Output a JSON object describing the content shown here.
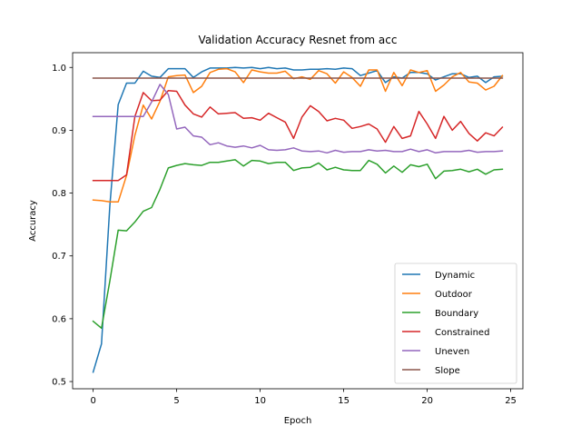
{
  "chart_data": {
    "type": "line",
    "title": "Validation Accuracy Resnet from acc",
    "xlabel": "Epoch",
    "ylabel": "Accuracy",
    "xlim": [
      -1.23,
      25.73
    ],
    "ylim": [
      0.4885,
      1.0235
    ],
    "x_ticks": [
      0,
      5,
      10,
      15,
      20,
      25
    ],
    "y_ticks": [
      0.5,
      0.6,
      0.7,
      0.8,
      0.9,
      1.0
    ],
    "x_tick_labels": [
      "0",
      "5",
      "10",
      "15",
      "20",
      "25"
    ],
    "y_tick_labels": [
      "0.5",
      "0.6",
      "0.7",
      "0.8",
      "0.9",
      "1.0"
    ],
    "grid": false,
    "legend_position": "bottom-right",
    "x": [
      0,
      0.5,
      1,
      1.5,
      2,
      2.5,
      3,
      3.5,
      4,
      4.5,
      5,
      5.5,
      6,
      6.5,
      7,
      7.5,
      8,
      8.5,
      9,
      9.5,
      10,
      10.5,
      11,
      11.5,
      12,
      12.5,
      13,
      13.5,
      14,
      14.5,
      15,
      15.5,
      16,
      16.5,
      17,
      17.5,
      18,
      18.5,
      19,
      19.5,
      20,
      20.5,
      21,
      21.5,
      22,
      22.5,
      23,
      23.5,
      24,
      24.5
    ],
    "series": [
      {
        "name": "Dynamic",
        "color": "#1f77b4",
        "values": [
          0.515,
          0.56,
          0.78,
          0.941,
          0.975,
          0.975,
          0.994,
          0.986,
          0.984,
          0.998,
          0.998,
          0.998,
          0.984,
          0.993,
          0.999,
          0.999,
          0.999,
          1.0,
          0.999,
          1.0,
          0.998,
          1.0,
          0.998,
          0.999,
          0.996,
          0.996,
          0.997,
          0.997,
          0.998,
          0.997,
          0.999,
          0.998,
          0.987,
          0.991,
          0.995,
          0.976,
          0.985,
          0.983,
          0.992,
          0.992,
          0.99,
          0.98,
          0.985,
          0.99,
          0.99,
          0.984,
          0.986,
          0.976,
          0.985,
          0.986
        ]
      },
      {
        "name": "Outdoor",
        "color": "#ff7f0e",
        "values": [
          0.789,
          0.788,
          0.786,
          0.786,
          0.828,
          0.892,
          0.94,
          0.918,
          0.946,
          0.985,
          0.987,
          0.988,
          0.96,
          0.97,
          0.992,
          0.997,
          0.998,
          0.993,
          0.976,
          0.996,
          0.993,
          0.991,
          0.991,
          0.994,
          0.982,
          0.985,
          0.981,
          0.995,
          0.99,
          0.975,
          0.993,
          0.984,
          0.97,
          0.996,
          0.996,
          0.962,
          0.992,
          0.971,
          0.996,
          0.992,
          0.995,
          0.962,
          0.972,
          0.985,
          0.992,
          0.977,
          0.975,
          0.964,
          0.97,
          0.987
        ]
      },
      {
        "name": "Boundary",
        "color": "#2ca02c",
        "values": [
          0.596,
          0.585,
          0.66,
          0.741,
          0.74,
          0.754,
          0.771,
          0.777,
          0.806,
          0.84,
          0.844,
          0.847,
          0.845,
          0.844,
          0.849,
          0.849,
          0.851,
          0.853,
          0.843,
          0.852,
          0.851,
          0.847,
          0.849,
          0.849,
          0.836,
          0.84,
          0.841,
          0.848,
          0.837,
          0.841,
          0.837,
          0.836,
          0.836,
          0.852,
          0.846,
          0.832,
          0.843,
          0.833,
          0.845,
          0.842,
          0.846,
          0.823,
          0.835,
          0.836,
          0.838,
          0.834,
          0.838,
          0.83,
          0.837,
          0.838
        ]
      },
      {
        "name": "Constrained",
        "color": "#d62728",
        "values": [
          0.82,
          0.82,
          0.82,
          0.82,
          0.829,
          0.922,
          0.96,
          0.947,
          0.948,
          0.963,
          0.962,
          0.94,
          0.926,
          0.921,
          0.937,
          0.926,
          0.927,
          0.928,
          0.919,
          0.92,
          0.916,
          0.927,
          0.92,
          0.913,
          0.887,
          0.921,
          0.939,
          0.93,
          0.915,
          0.919,
          0.916,
          0.903,
          0.906,
          0.91,
          0.902,
          0.881,
          0.906,
          0.887,
          0.891,
          0.93,
          0.91,
          0.887,
          0.922,
          0.9,
          0.914,
          0.895,
          0.883,
          0.896,
          0.891,
          0.905
        ]
      },
      {
        "name": "Uneven",
        "color": "#9467bd",
        "values": [
          0.922,
          0.922,
          0.922,
          0.922,
          0.922,
          0.922,
          0.922,
          0.945,
          0.973,
          0.957,
          0.902,
          0.905,
          0.891,
          0.889,
          0.877,
          0.88,
          0.875,
          0.873,
          0.875,
          0.872,
          0.876,
          0.869,
          0.868,
          0.869,
          0.872,
          0.867,
          0.866,
          0.867,
          0.864,
          0.868,
          0.865,
          0.866,
          0.866,
          0.869,
          0.867,
          0.868,
          0.866,
          0.866,
          0.87,
          0.866,
          0.869,
          0.864,
          0.866,
          0.866,
          0.866,
          0.868,
          0.865,
          0.866,
          0.866,
          0.867
        ]
      },
      {
        "name": "Slope",
        "color": "#8c564b",
        "values": [
          0.983,
          0.983,
          0.983,
          0.983,
          0.983,
          0.983,
          0.983,
          0.983,
          0.983,
          0.983,
          0.983,
          0.983,
          0.983,
          0.983,
          0.983,
          0.983,
          0.983,
          0.983,
          0.983,
          0.983,
          0.983,
          0.983,
          0.983,
          0.983,
          0.983,
          0.983,
          0.983,
          0.983,
          0.983,
          0.983,
          0.983,
          0.983,
          0.983,
          0.983,
          0.983,
          0.983,
          0.983,
          0.983,
          0.983,
          0.983,
          0.983,
          0.983,
          0.983,
          0.983,
          0.983,
          0.983,
          0.983,
          0.983,
          0.983,
          0.983
        ]
      }
    ]
  }
}
